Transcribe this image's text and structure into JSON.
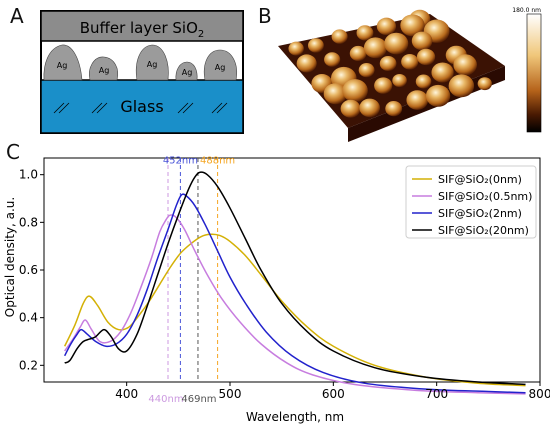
{
  "panels": {
    "a": {
      "letter": "A"
    },
    "b": {
      "letter": "B"
    },
    "c": {
      "letter": "C"
    }
  },
  "schematic": {
    "buffer_label": "Buffer layer SiO",
    "buffer_sub": "2",
    "particle_label": "Ag",
    "substrate_label": "Glass",
    "colors": {
      "buffer": "#8c8c8c",
      "particle": "#9b9b9b",
      "glass": "#1a8fc9"
    }
  },
  "afm": {
    "scale_label": "180.0 nm"
  },
  "chart_data": {
    "type": "line",
    "xlabel": "Wavelength, nm",
    "ylabel": "Optical density, a.u.",
    "xlim": [
      320,
      800
    ],
    "ylim": [
      0.13,
      1.07
    ],
    "xticks": [
      400,
      500,
      600,
      700,
      800
    ],
    "yticks": [
      0.2,
      0.4,
      0.6,
      0.8,
      1.0
    ],
    "grid": false,
    "legend_position": "top-right",
    "series": [
      {
        "name": "SIF@SiO₂(0nm)",
        "color": "#d4b106",
        "points": [
          [
            340,
            0.28
          ],
          [
            350,
            0.37
          ],
          [
            358,
            0.46
          ],
          [
            364,
            0.49
          ],
          [
            372,
            0.45
          ],
          [
            382,
            0.38
          ],
          [
            392,
            0.35
          ],
          [
            402,
            0.36
          ],
          [
            412,
            0.41
          ],
          [
            422,
            0.47
          ],
          [
            432,
            0.54
          ],
          [
            442,
            0.61
          ],
          [
            452,
            0.67
          ],
          [
            462,
            0.71
          ],
          [
            472,
            0.74
          ],
          [
            481,
            0.75
          ],
          [
            490,
            0.745
          ],
          [
            500,
            0.72
          ],
          [
            515,
            0.66
          ],
          [
            530,
            0.58
          ],
          [
            550,
            0.47
          ],
          [
            575,
            0.36
          ],
          [
            600,
            0.28
          ],
          [
            640,
            0.2
          ],
          [
            690,
            0.15
          ],
          [
            740,
            0.125
          ],
          [
            786,
            0.115
          ]
        ]
      },
      {
        "name": "SIF@SiO₂(0.5nm)",
        "color": "#c77ddf",
        "points": [
          [
            340,
            0.26
          ],
          [
            348,
            0.31
          ],
          [
            355,
            0.36
          ],
          [
            360,
            0.39
          ],
          [
            366,
            0.35
          ],
          [
            374,
            0.3
          ],
          [
            384,
            0.3
          ],
          [
            394,
            0.34
          ],
          [
            404,
            0.42
          ],
          [
            414,
            0.53
          ],
          [
            424,
            0.65
          ],
          [
            432,
            0.76
          ],
          [
            438,
            0.81
          ],
          [
            442,
            0.83
          ],
          [
            448,
            0.82
          ],
          [
            456,
            0.77
          ],
          [
            466,
            0.68
          ],
          [
            478,
            0.58
          ],
          [
            492,
            0.48
          ],
          [
            510,
            0.38
          ],
          [
            530,
            0.29
          ],
          [
            555,
            0.21
          ],
          [
            580,
            0.16
          ],
          [
            620,
            0.12
          ],
          [
            680,
            0.095
          ],
          [
            740,
            0.085
          ],
          [
            786,
            0.08
          ]
        ]
      },
      {
        "name": "SIF@SiO₂(2nm)",
        "color": "#2222cc",
        "points": [
          [
            340,
            0.24
          ],
          [
            346,
            0.29
          ],
          [
            352,
            0.33
          ],
          [
            356,
            0.35
          ],
          [
            362,
            0.33
          ],
          [
            370,
            0.3
          ],
          [
            380,
            0.28
          ],
          [
            390,
            0.29
          ],
          [
            400,
            0.33
          ],
          [
            410,
            0.41
          ],
          [
            420,
            0.52
          ],
          [
            430,
            0.65
          ],
          [
            440,
            0.77
          ],
          [
            448,
            0.87
          ],
          [
            453,
            0.915
          ],
          [
            458,
            0.91
          ],
          [
            466,
            0.87
          ],
          [
            476,
            0.79
          ],
          [
            488,
            0.68
          ],
          [
            500,
            0.57
          ],
          [
            515,
            0.46
          ],
          [
            535,
            0.34
          ],
          [
            560,
            0.24
          ],
          [
            590,
            0.17
          ],
          [
            630,
            0.125
          ],
          [
            690,
            0.1
          ],
          [
            750,
            0.09
          ],
          [
            786,
            0.085
          ]
        ]
      },
      {
        "name": "SIF@SiO₂(20nm)",
        "color": "#000000",
        "points": [
          [
            340,
            0.21
          ],
          [
            345,
            0.22
          ],
          [
            352,
            0.27
          ],
          [
            358,
            0.3
          ],
          [
            364,
            0.31
          ],
          [
            370,
            0.32
          ],
          [
            378,
            0.35
          ],
          [
            385,
            0.32
          ],
          [
            392,
            0.27
          ],
          [
            400,
            0.26
          ],
          [
            410,
            0.33
          ],
          [
            420,
            0.45
          ],
          [
            430,
            0.58
          ],
          [
            440,
            0.71
          ],
          [
            450,
            0.83
          ],
          [
            460,
            0.94
          ],
          [
            466,
            0.99
          ],
          [
            471,
            1.01
          ],
          [
            478,
            1.0
          ],
          [
            488,
            0.95
          ],
          [
            500,
            0.86
          ],
          [
            515,
            0.73
          ],
          [
            530,
            0.6
          ],
          [
            550,
            0.46
          ],
          [
            575,
            0.34
          ],
          [
            600,
            0.26
          ],
          [
            640,
            0.19
          ],
          [
            690,
            0.15
          ],
          [
            740,
            0.13
          ],
          [
            786,
            0.12
          ]
        ]
      }
    ],
    "annotations": [
      {
        "text": "452nm",
        "x": 452,
        "position": "top",
        "color": "#4a55d8"
      },
      {
        "text": "488nm",
        "x": 488,
        "position": "top",
        "color": "#f5a623"
      },
      {
        "text": "440nm",
        "x": 440,
        "position": "bottom",
        "color": "#cc9ae0"
      },
      {
        "text": "469nm",
        "x": 469,
        "position": "bottom",
        "color": "#555555"
      }
    ],
    "vlines": [
      {
        "x": 440,
        "color": "#cc9ae0"
      },
      {
        "x": 452,
        "color": "#4a55d8"
      },
      {
        "x": 469,
        "color": "#555555"
      },
      {
        "x": 488,
        "color": "#f5a623"
      }
    ]
  }
}
